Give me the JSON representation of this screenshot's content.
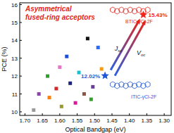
{
  "chart_data": {
    "type": "scatter",
    "x_label": "Optical Bandgap (eV)",
    "y_label": "PCE (%)",
    "xlim": [
      1.715,
      1.28
    ],
    "xticks": [
      {
        "value": 1.7,
        "label": "1.70"
      },
      {
        "value": 1.65,
        "label": "1.65"
      },
      {
        "value": 1.6,
        "label": "1.60"
      },
      {
        "value": 1.55,
        "label": "1.55"
      },
      {
        "value": 1.5,
        "label": "1.50"
      },
      {
        "value": 1.45,
        "label": "1.45"
      },
      {
        "value": 1.4,
        "label": "1.40"
      },
      {
        "value": 1.35,
        "label": "1.35"
      },
      {
        "value": 1.3,
        "label": "1.30"
      }
    ],
    "ylim": [
      9.8,
      16.1
    ],
    "yticks": [
      10,
      11,
      12,
      13,
      14,
      15,
      16
    ],
    "grid": false,
    "series": [
      {
        "marker": "square",
        "x": [
          1.675,
          1.66,
          1.635,
          1.63,
          1.61,
          1.6,
          1.595,
          1.58,
          1.57,
          1.555,
          1.545,
          1.53,
          1.52,
          1.51,
          1.505,
          1.49,
          1.48
        ],
        "values": [
          10.1,
          11.0,
          12.0,
          10.8,
          11.3,
          12.5,
          10.3,
          13.1,
          11.6,
          10.5,
          12.2,
          11.0,
          14.1,
          10.7,
          11.4,
          13.6,
          12.4
        ],
        "colors": [
          "#9a9a9a",
          "#8e44ad",
          "#2ca02c",
          "#ff7f0e",
          "#d62728",
          "#e377c2",
          "#9a9a2a",
          "#1f4fd6",
          "#1a237e",
          "#d81b9b",
          "#17becf",
          "#8c564b",
          "#111111",
          "#33a02c",
          "#6a3d9a",
          "#2b6cf0",
          "#f39c12"
        ]
      },
      {
        "marker": "star",
        "color": "#1e56d6",
        "x": [
          1.47
        ],
        "values": [
          12.02
        ],
        "data_labels": true,
        "value_labels": [
          "12.02%"
        ]
      },
      {
        "marker": "star",
        "color": "#f0261c",
        "x": [
          1.36
        ],
        "values": [
          15.43
        ],
        "data_labels": true,
        "value_labels": [
          "15.43%"
        ]
      }
    ],
    "annotations": [
      {
        "text": "Asymmetrical",
        "color": "#e8231a"
      },
      {
        "text": "fused-ring acceptors",
        "color": "#e8231a"
      },
      {
        "text": "BTIC-γCl-2F",
        "color": "#e8231a"
      },
      {
        "text": "ITIC-γCl-2F",
        "color": "#1e56d6"
      },
      {
        "text": "J",
        "sub": "sc",
        "color": "#111111"
      },
      {
        "text": "V",
        "sub": "oc",
        "color": "#111111"
      }
    ]
  }
}
